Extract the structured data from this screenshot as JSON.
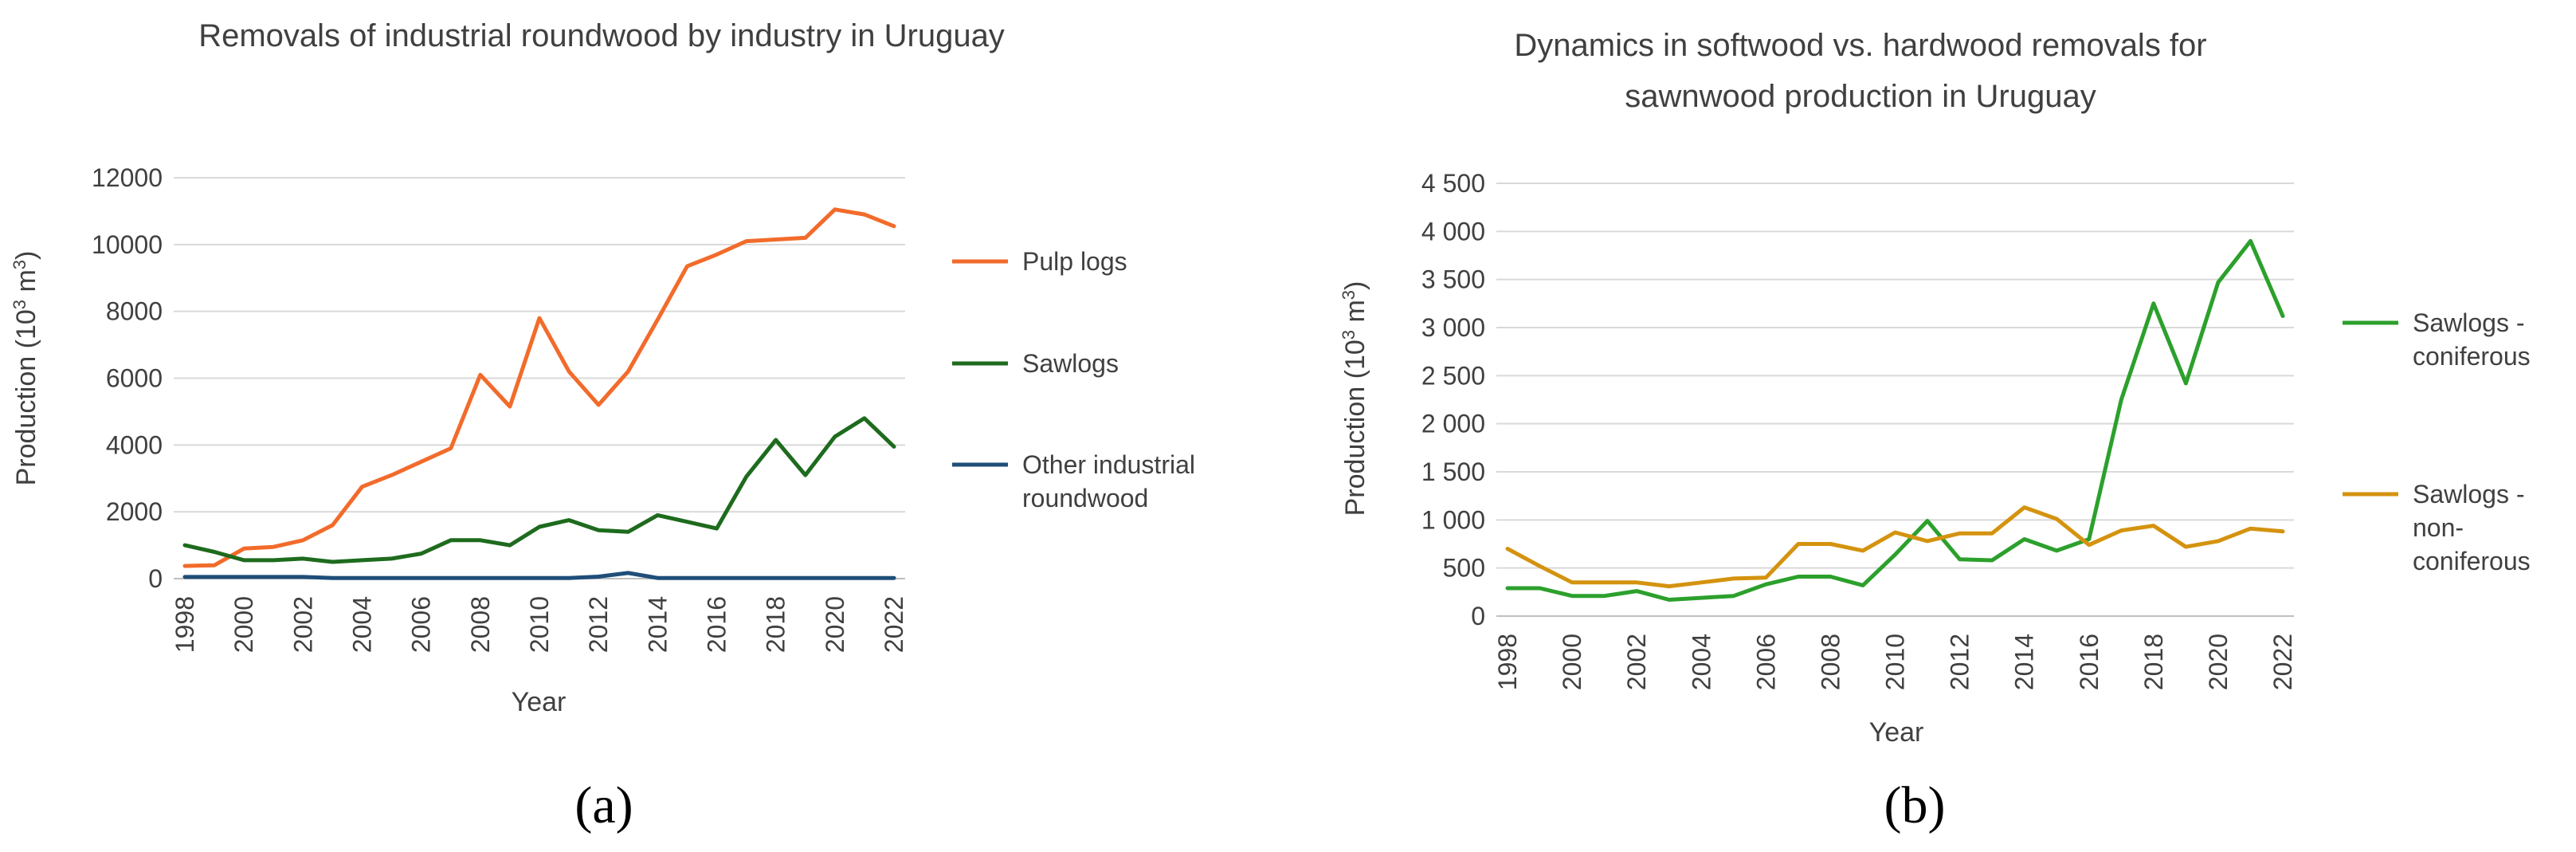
{
  "chart_data": [
    {
      "type": "line",
      "panel_label": "(a)",
      "title": "Removals of industrial roundwood by industry in Uruguay",
      "xlabel": "Year",
      "ylabel": "Production (10³ m³)",
      "ylim": [
        0,
        12000
      ],
      "yticks": [
        "0",
        "2000",
        "4000",
        "6000",
        "8000",
        "10000",
        "12000"
      ],
      "x": [
        1998,
        1999,
        2000,
        2001,
        2002,
        2003,
        2004,
        2005,
        2006,
        2007,
        2008,
        2009,
        2010,
        2011,
        2012,
        2013,
        2014,
        2015,
        2016,
        2017,
        2018,
        2019,
        2020,
        2021,
        2022
      ],
      "xtick_labels": [
        "1998",
        "2000",
        "2002",
        "2004",
        "2006",
        "2008",
        "2010",
        "2012",
        "2014",
        "2016",
        "2018",
        "2020",
        "2022"
      ],
      "grid": true,
      "legend_position": "right",
      "series": [
        {
          "name": "Pulp logs",
          "color": "#f26b2b",
          "values": [
            380,
            400,
            900,
            950,
            1150,
            1600,
            2750,
            3100,
            3500,
            3900,
            6100,
            5150,
            7800,
            6200,
            5200,
            6200,
            7750,
            9350,
            9700,
            10100,
            10150,
            10200,
            11050,
            10900,
            10550
          ]
        },
        {
          "name": "Sawlogs",
          "color": "#1e6b1e",
          "values": [
            1000,
            800,
            550,
            550,
            600,
            500,
            550,
            600,
            750,
            1150,
            1150,
            1000,
            1550,
            1750,
            1450,
            1400,
            1900,
            1700,
            1500,
            3050,
            4150,
            3100,
            4250,
            4800,
            3950
          ]
        },
        {
          "name": "Other industrial roundwood",
          "legend_lines": [
            "Other industrial",
            "roundwood"
          ],
          "color": "#1f4e79",
          "values": [
            50,
            50,
            50,
            50,
            50,
            20,
            20,
            20,
            20,
            20,
            20,
            20,
            20,
            20,
            60,
            170,
            20,
            20,
            20,
            20,
            20,
            20,
            20,
            20,
            20
          ]
        }
      ]
    },
    {
      "type": "line",
      "panel_label": "(b)",
      "title": "Dynamics in softwood vs. hardwood removals for sawnwood production in Uruguay",
      "title_lines": [
        "Dynamics in softwood vs. hardwood removals for",
        "sawnwood production in Uruguay"
      ],
      "xlabel": "Year",
      "ylabel": "Production (10³ m³)",
      "ylim": [
        0,
        4500
      ],
      "yticks": [
        "0",
        "500",
        "1 000",
        "1 500",
        "2 000",
        "2 500",
        "3 000",
        "3 500",
        "4 000",
        "4 500"
      ],
      "x": [
        1998,
        1999,
        2000,
        2001,
        2002,
        2003,
        2004,
        2005,
        2006,
        2007,
        2008,
        2009,
        2010,
        2011,
        2012,
        2013,
        2014,
        2015,
        2016,
        2017,
        2018,
        2019,
        2020,
        2021,
        2022
      ],
      "xtick_labels": [
        "1998",
        "2000",
        "2002",
        "2004",
        "2006",
        "2008",
        "2010",
        "2012",
        "2014",
        "2016",
        "2018",
        "2020",
        "2022"
      ],
      "grid": true,
      "legend_position": "right",
      "series": [
        {
          "name": "Sawlogs - coniferous",
          "legend_lines": [
            "Sawlogs -",
            "coniferous"
          ],
          "color": "#2ca02c",
          "values": [
            290,
            290,
            210,
            210,
            260,
            170,
            190,
            210,
            330,
            410,
            410,
            320,
            640,
            990,
            590,
            580,
            800,
            680,
            800,
            2250,
            3250,
            2420,
            3470,
            3900,
            3120
          ]
        },
        {
          "name": "Sawlogs - non-coniferous",
          "legend_lines": [
            "Sawlogs -",
            "non-",
            "coniferous"
          ],
          "color": "#d4930f",
          "values": [
            700,
            520,
            350,
            350,
            350,
            310,
            350,
            390,
            400,
            750,
            750,
            680,
            870,
            780,
            860,
            860,
            1130,
            1010,
            740,
            890,
            940,
            720,
            780,
            910,
            880
          ]
        }
      ]
    }
  ]
}
